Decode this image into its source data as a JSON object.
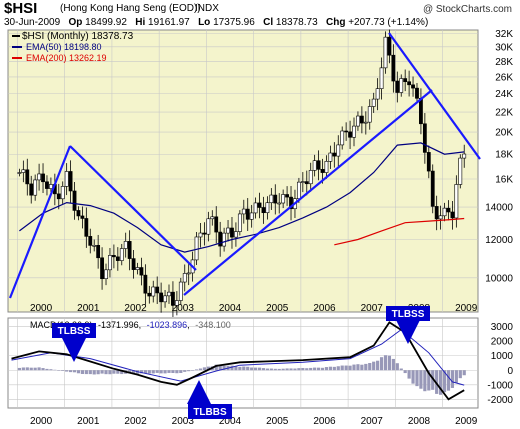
{
  "header": {
    "symbol": "$HSI",
    "name": "(Hong Kong Hang Seng (EOD))",
    "exchange": "INDX",
    "watermark": "@ StockCharts.com",
    "date": "30-Jun-2009",
    "open_label": "Op",
    "open": "18499.92",
    "high_label": "Hi",
    "high": "19161.97",
    "low_label": "Lo",
    "low": "17375.96",
    "close_label": "Cl",
    "close": "18378.73",
    "change_label": "Chg",
    "change": "+207.73 (+1.14%)"
  },
  "legend": {
    "main": "$HSI (Monthly) 18378.73",
    "ema50": "EMA(50) 18198.80",
    "ema200": "EMA(200) 13262.19"
  },
  "macd_legend": {
    "prefix": "MACD(12,26,9)",
    "macd": "-1371.996",
    "signal": "-1023.896",
    "hist": "-348.100"
  },
  "annotations": [
    {
      "text": "TLBSS"
    },
    {
      "text": "TLBSS"
    },
    {
      "text": "TLBBS"
    }
  ],
  "colors": {
    "background": "#f4f4cc",
    "grid": "#c8c8c8",
    "candles": "#000000",
    "ema50": "#000080",
    "ema200": "#dd0000",
    "trendline": "#1a1aff",
    "macd": "#000000",
    "signal": "#2222bb",
    "histogram": "#9898b8",
    "annotation_box": "#0000cc"
  },
  "chart_data": [
    {
      "type": "candlestick",
      "title": "$HSI (Monthly)",
      "x": [
        "2000",
        "2001",
        "2002",
        "2003",
        "2004",
        "2005",
        "2006",
        "2007",
        "2008",
        "2009"
      ],
      "y_ticks": [
        "10000",
        "12000",
        "14000",
        "16K",
        "18K",
        "20K",
        "22K",
        "24K",
        "26K",
        "28K",
        "30K",
        "32K"
      ],
      "y_scale": "log",
      "ylim": [
        8500,
        32500
      ],
      "series": [
        {
          "name": "$HSI (Monthly)",
          "points": [
            [
              "2000-01",
              16500
            ],
            [
              "2000-04",
              15000
            ],
            [
              "2000-07",
              16200
            ],
            [
              "2000-10",
              15000
            ],
            [
              "2001-01",
              16000
            ],
            [
              "2001-04",
              13000
            ],
            [
              "2001-07",
              12000
            ],
            [
              "2001-10",
              10500
            ],
            [
              "2002-01",
              11000
            ],
            [
              "2002-04",
              11300
            ],
            [
              "2002-07",
              10300
            ],
            [
              "2002-10",
              9500
            ],
            [
              "2003-01",
              9200
            ],
            [
              "2003-04",
              8700
            ],
            [
              "2003-07",
              10000
            ],
            [
              "2003-10",
              12000
            ],
            [
              "2004-01",
              13200
            ],
            [
              "2004-04",
              11800
            ],
            [
              "2004-07",
              12500
            ],
            [
              "2004-10",
              13900
            ],
            [
              "2005-01",
              13700
            ],
            [
              "2005-04",
              13900
            ],
            [
              "2005-07",
              14800
            ],
            [
              "2005-10",
              14600
            ],
            [
              "2006-01",
              15600
            ],
            [
              "2006-04",
              16600
            ],
            [
              "2006-07",
              17200
            ],
            [
              "2006-10",
              19500
            ],
            [
              "2007-01",
              20000
            ],
            [
              "2007-04",
              20700
            ],
            [
              "2007-07",
              23000
            ],
            [
              "2007-10",
              31000
            ],
            [
              "2008-01",
              24000
            ],
            [
              "2008-04",
              25500
            ],
            [
              "2008-07",
              21500
            ],
            [
              "2008-10",
              14000
            ],
            [
              "2009-01",
              13300
            ],
            [
              "2009-03",
              13500
            ],
            [
              "2009-05",
              17000
            ],
            [
              "2009-06",
              18378.73
            ]
          ]
        },
        {
          "name": "EMA(50)",
          "points": [
            [
              "2000-01",
              12500
            ],
            [
              "2000-07",
              13600
            ],
            [
              "2001-01",
              14300
            ],
            [
              "2001-07",
              14100
            ],
            [
              "2002-01",
              13600
            ],
            [
              "2002-07",
              12700
            ],
            [
              "2003-01",
              11700
            ],
            [
              "2003-07",
              11300
            ],
            [
              "2004-01",
              11600
            ],
            [
              "2004-07",
              12000
            ],
            [
              "2005-01",
              12300
            ],
            [
              "2005-07",
              12700
            ],
            [
              "2006-01",
              13300
            ],
            [
              "2006-07",
              14000
            ],
            [
              "2007-01",
              15000
            ],
            [
              "2007-07",
              16500
            ],
            [
              "2008-01",
              18800
            ],
            [
              "2008-07",
              19000
            ],
            [
              "2009-01",
              18000
            ],
            [
              "2009-06",
              18198.8
            ]
          ]
        },
        {
          "name": "EMA(200)",
          "points": [
            [
              "2006-09",
              11700
            ],
            [
              "2007-03",
              12000
            ],
            [
              "2007-09",
              12500
            ],
            [
              "2008-03",
              13000
            ],
            [
              "2008-09",
              13100
            ],
            [
              "2009-03",
              13200
            ],
            [
              "2009-06",
              13262.19
            ]
          ]
        }
      ]
    },
    {
      "type": "line",
      "title": "MACD(12,26,9)",
      "x": [
        "2000",
        "2001",
        "2002",
        "2003",
        "2004",
        "2005",
        "2006",
        "2007",
        "2008",
        "2009"
      ],
      "y_ticks": [
        "3000",
        "2000",
        "1000",
        "0",
        "-1000",
        "-2000"
      ],
      "ylim": [
        -2600,
        3600
      ],
      "series": [
        {
          "name": "MACD",
          "points": [
            [
              "1999-11",
              800
            ],
            [
              "2000-06",
              1300
            ],
            [
              "2001-01",
              1100
            ],
            [
              "2001-07",
              600
            ],
            [
              "2002-01",
              100
            ],
            [
              "2002-07",
              -300
            ],
            [
              "2003-01",
              -800
            ],
            [
              "2003-05",
              -1000
            ],
            [
              "2003-09",
              -500
            ],
            [
              "2004-03",
              300
            ],
            [
              "2004-09",
              550
            ],
            [
              "2005-03",
              600
            ],
            [
              "2006-01",
              700
            ],
            [
              "2007-01",
              900
            ],
            [
              "2007-07",
              1700
            ],
            [
              "2007-11",
              3300
            ],
            [
              "2008-03",
              2600
            ],
            [
              "2008-09",
              -200
            ],
            [
              "2009-02",
              -2000
            ],
            [
              "2009-06",
              -1371.996
            ]
          ]
        },
        {
          "name": "Signal",
          "points": [
            [
              "1999-11",
              700
            ],
            [
              "2000-09",
              1200
            ],
            [
              "2001-07",
              800
            ],
            [
              "2002-07",
              -100
            ],
            [
              "2003-06",
              -750
            ],
            [
              "2004-03",
              -50
            ],
            [
              "2004-09",
              350
            ],
            [
              "2006-01",
              550
            ],
            [
              "2007-01",
              800
            ],
            [
              "2007-09",
              1800
            ],
            [
              "2008-02",
              2800
            ],
            [
              "2008-09",
              1200
            ],
            [
              "2009-03",
              -800
            ],
            [
              "2009-06",
              -1023.896
            ]
          ]
        },
        {
          "name": "Histogram",
          "points": [
            [
              "2000-06",
              200
            ],
            [
              "2001-06",
              -300
            ],
            [
              "2002-06",
              -250
            ],
            [
              "2003-06",
              -200
            ],
            [
              "2004-03",
              400
            ],
            [
              "2005-06",
              100
            ],
            [
              "2006-06",
              200
            ],
            [
              "2007-06",
              500
            ],
            [
              "2007-11",
              1200
            ],
            [
              "2008-06",
              -1300
            ],
            [
              "2009-01",
              -1800
            ],
            [
              "2009-06",
              -348.1
            ]
          ]
        }
      ]
    }
  ]
}
